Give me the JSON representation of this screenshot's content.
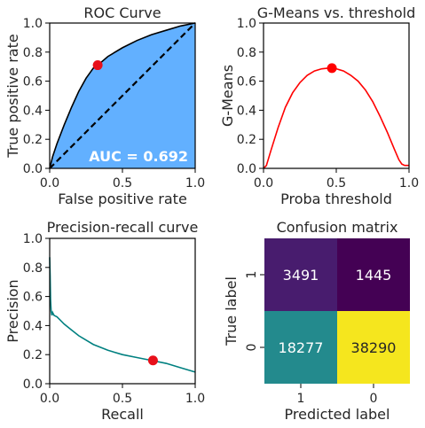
{
  "chart_data": [
    {
      "type": "area",
      "title": "ROC Curve",
      "xlabel": "False positive rate",
      "ylabel": "True positive rate",
      "xlim": [
        0,
        1
      ],
      "ylim": [
        0,
        1
      ],
      "xticks": [
        "0.0",
        "0.5",
        "1.0"
      ],
      "yticks": [
        "0.0",
        "0.2",
        "0.4",
        "0.6",
        "0.8",
        "1.0"
      ],
      "curve": {
        "x": [
          0,
          0.02,
          0.05,
          0.1,
          0.15,
          0.2,
          0.25,
          0.3,
          0.33,
          0.4,
          0.5,
          0.6,
          0.7,
          0.8,
          0.9,
          1.0
        ],
        "y": [
          0,
          0.08,
          0.17,
          0.3,
          0.42,
          0.53,
          0.62,
          0.69,
          0.71,
          0.77,
          0.83,
          0.88,
          0.92,
          0.95,
          0.98,
          1.0
        ]
      },
      "diagonal": {
        "x": [
          0,
          1
        ],
        "y": [
          0,
          1
        ]
      },
      "highlight": {
        "x": 0.33,
        "y": 0.71
      },
      "annotation": "AUC = 0.692",
      "colors": {
        "fill": "#62b0ff",
        "curve": "#000000",
        "diagonal": "#000000",
        "marker": "#e8101a",
        "annotation": "#ffffff"
      },
      "grid": false
    },
    {
      "type": "line",
      "title": "G-Means vs. threshold",
      "xlabel": "Proba threshold",
      "ylabel": "G-Means",
      "xlim": [
        0,
        1
      ],
      "ylim": [
        0,
        1
      ],
      "xticks": [
        "0.0",
        "0.5",
        "1.0"
      ],
      "yticks": [
        "0.0",
        "0.2",
        "0.4",
        "0.6",
        "0.8",
        "1.0"
      ],
      "series": [
        {
          "x": [
            0.0,
            0.02,
            0.05,
            0.1,
            0.15,
            0.2,
            0.25,
            0.3,
            0.35,
            0.4,
            0.45,
            0.47,
            0.5,
            0.55,
            0.6,
            0.65,
            0.7,
            0.75,
            0.8,
            0.85,
            0.9,
            0.93,
            0.95,
            0.97,
            1.0
          ],
          "y": [
            0.0,
            0.02,
            0.12,
            0.28,
            0.42,
            0.52,
            0.59,
            0.64,
            0.67,
            0.685,
            0.69,
            0.69,
            0.685,
            0.67,
            0.64,
            0.6,
            0.54,
            0.46,
            0.36,
            0.25,
            0.13,
            0.06,
            0.03,
            0.02,
            0.02
          ]
        }
      ],
      "highlight": {
        "x": 0.47,
        "y": 0.69
      },
      "colors": {
        "line": "#ff0000",
        "marker": "#ff0000"
      },
      "grid": false
    },
    {
      "type": "line",
      "title": "Precision-recall curve",
      "xlabel": "Recall",
      "ylabel": "Precision",
      "xlim": [
        0,
        1
      ],
      "ylim": [
        0,
        1
      ],
      "xticks": [
        "0.0",
        "0.5",
        "1.0"
      ],
      "yticks": [
        "0.0",
        "0.2",
        "0.4",
        "0.6",
        "0.8",
        "1.0"
      ],
      "series": [
        {
          "x": [
            0.0,
            0.003,
            0.006,
            0.01,
            0.015,
            0.02,
            0.03,
            0.05,
            0.07,
            0.1,
            0.15,
            0.2,
            0.25,
            0.3,
            0.35,
            0.4,
            0.5,
            0.6,
            0.7,
            0.8,
            0.9,
            1.0
          ],
          "y": [
            0.87,
            0.75,
            0.58,
            0.5,
            0.47,
            0.49,
            0.47,
            0.46,
            0.44,
            0.41,
            0.37,
            0.33,
            0.3,
            0.27,
            0.25,
            0.23,
            0.2,
            0.18,
            0.16,
            0.14,
            0.11,
            0.08
          ]
        }
      ],
      "highlight": {
        "x": 0.71,
        "y": 0.16
      },
      "colors": {
        "line": "#008080",
        "marker": "#e8101a"
      },
      "grid": false
    },
    {
      "type": "heatmap",
      "title": "Confusion matrix",
      "xlabel": "Predicted label",
      "ylabel": "True label",
      "xticks": [
        "1",
        "0"
      ],
      "yticks": [
        "1",
        "0"
      ],
      "cells": [
        {
          "row": 0,
          "col": 0,
          "value": "3491",
          "color": "#481c6e"
        },
        {
          "row": 0,
          "col": 1,
          "value": "1445",
          "color": "#440154"
        },
        {
          "row": 1,
          "col": 0,
          "value": "18277",
          "color": "#238a8d"
        },
        {
          "row": 1,
          "col": 1,
          "value": "38290",
          "color": "#f5e61e"
        }
      ],
      "grid": false
    }
  ]
}
